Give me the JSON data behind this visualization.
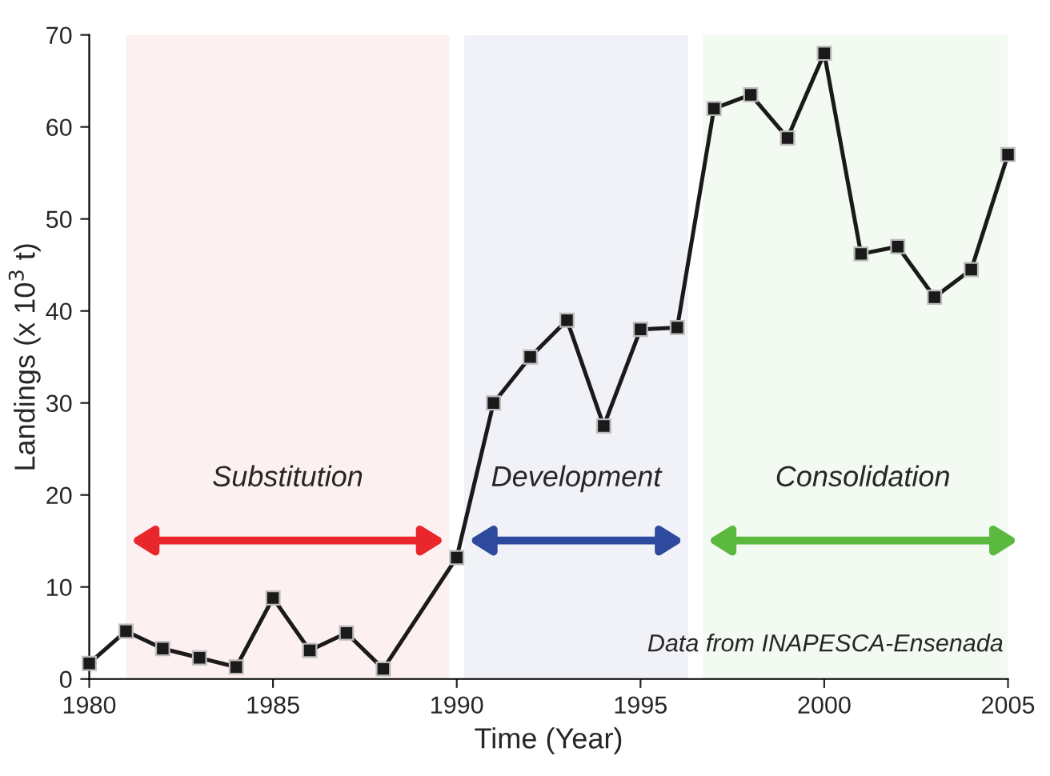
{
  "chart_data": {
    "type": "line",
    "xlabel": "Time (Year)",
    "ylabel": "Landings (x 10$^{3}$ t)",
    "series": [
      {
        "color": "#1a1a1a",
        "x": [
          1980,
          1981,
          1982,
          1983,
          1984,
          1985,
          1986,
          1987,
          1988,
          1990,
          1991,
          1992,
          1993,
          1994,
          1995,
          1996,
          1997,
          1998,
          1999,
          2000,
          2001,
          2002,
          2003,
          2004,
          2005
        ],
        "values": [
          1.7,
          5.2,
          3.3,
          2.3,
          1.3,
          8.8,
          3.1,
          5.0,
          1.1,
          13.2,
          30.0,
          35.0,
          39.0,
          27.5,
          38.0,
          38.2,
          62.0,
          63.5,
          58.8,
          68.0,
          46.2,
          47.0,
          41.5,
          44.5,
          57.0
        ]
      }
    ],
    "xlim": [
      1980,
      2005
    ],
    "ylim": [
      0,
      70
    ],
    "xticks": [
      1980,
      1985,
      1990,
      1995,
      2000,
      2005
    ],
    "yticks": [
      0,
      10,
      20,
      30,
      40,
      50,
      60,
      70
    ],
    "marker": "square",
    "line_style": "solid",
    "grid": false,
    "legend": false,
    "bands": [
      {
        "axis": "x",
        "from": 1981,
        "to": 1989.8,
        "label": "Substitution",
        "color": "#e8262b"
      },
      {
        "axis": "x",
        "from": 1990.2,
        "to": 1996.3,
        "label": "Development",
        "color": "#2e4a9e"
      },
      {
        "axis": "x",
        "from": 1996.7,
        "to": 2005.4,
        "label": "Consolidation",
        "color": "#5bb93f"
      }
    ],
    "annotations": [
      "Data from INAPESCA-Ensenada"
    ]
  }
}
